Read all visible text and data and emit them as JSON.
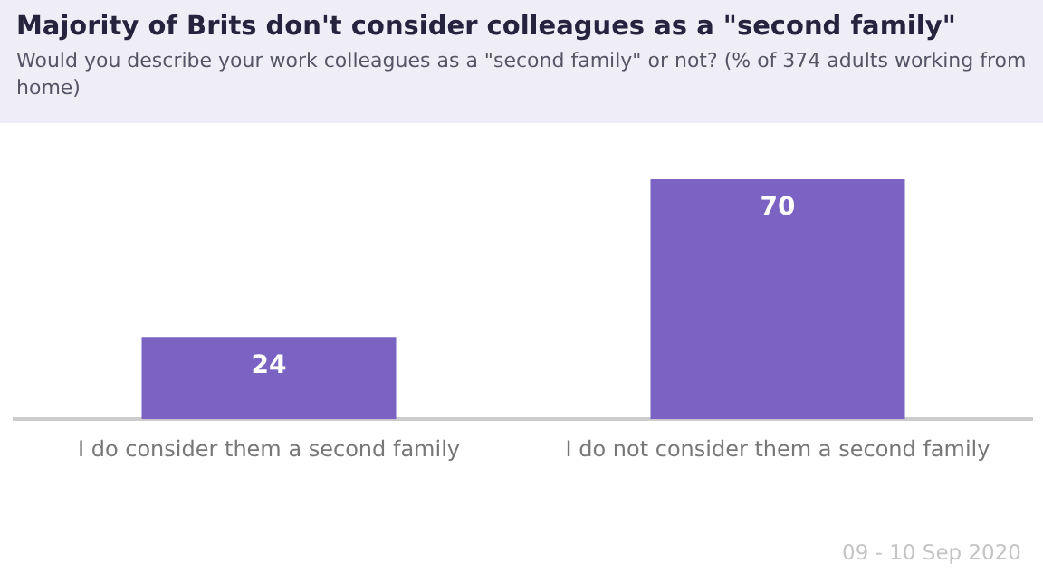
{
  "chart_data": {
    "type": "bar",
    "title": "Majority of Brits don't consider colleagues as a \"second family\"",
    "subtitle": "Would you describe your work colleagues as a \"second family\" or not? (% of 374 adults working from home)",
    "categories": [
      "I do consider them a second family",
      "I do not consider them a second family"
    ],
    "values": [
      24,
      70
    ],
    "color": "#7b63c3",
    "tick_labels": "x",
    "data_labels": true,
    "grid": false,
    "legend": false,
    "annotations": [
      "09 - 10 Sep 2020"
    ]
  }
}
